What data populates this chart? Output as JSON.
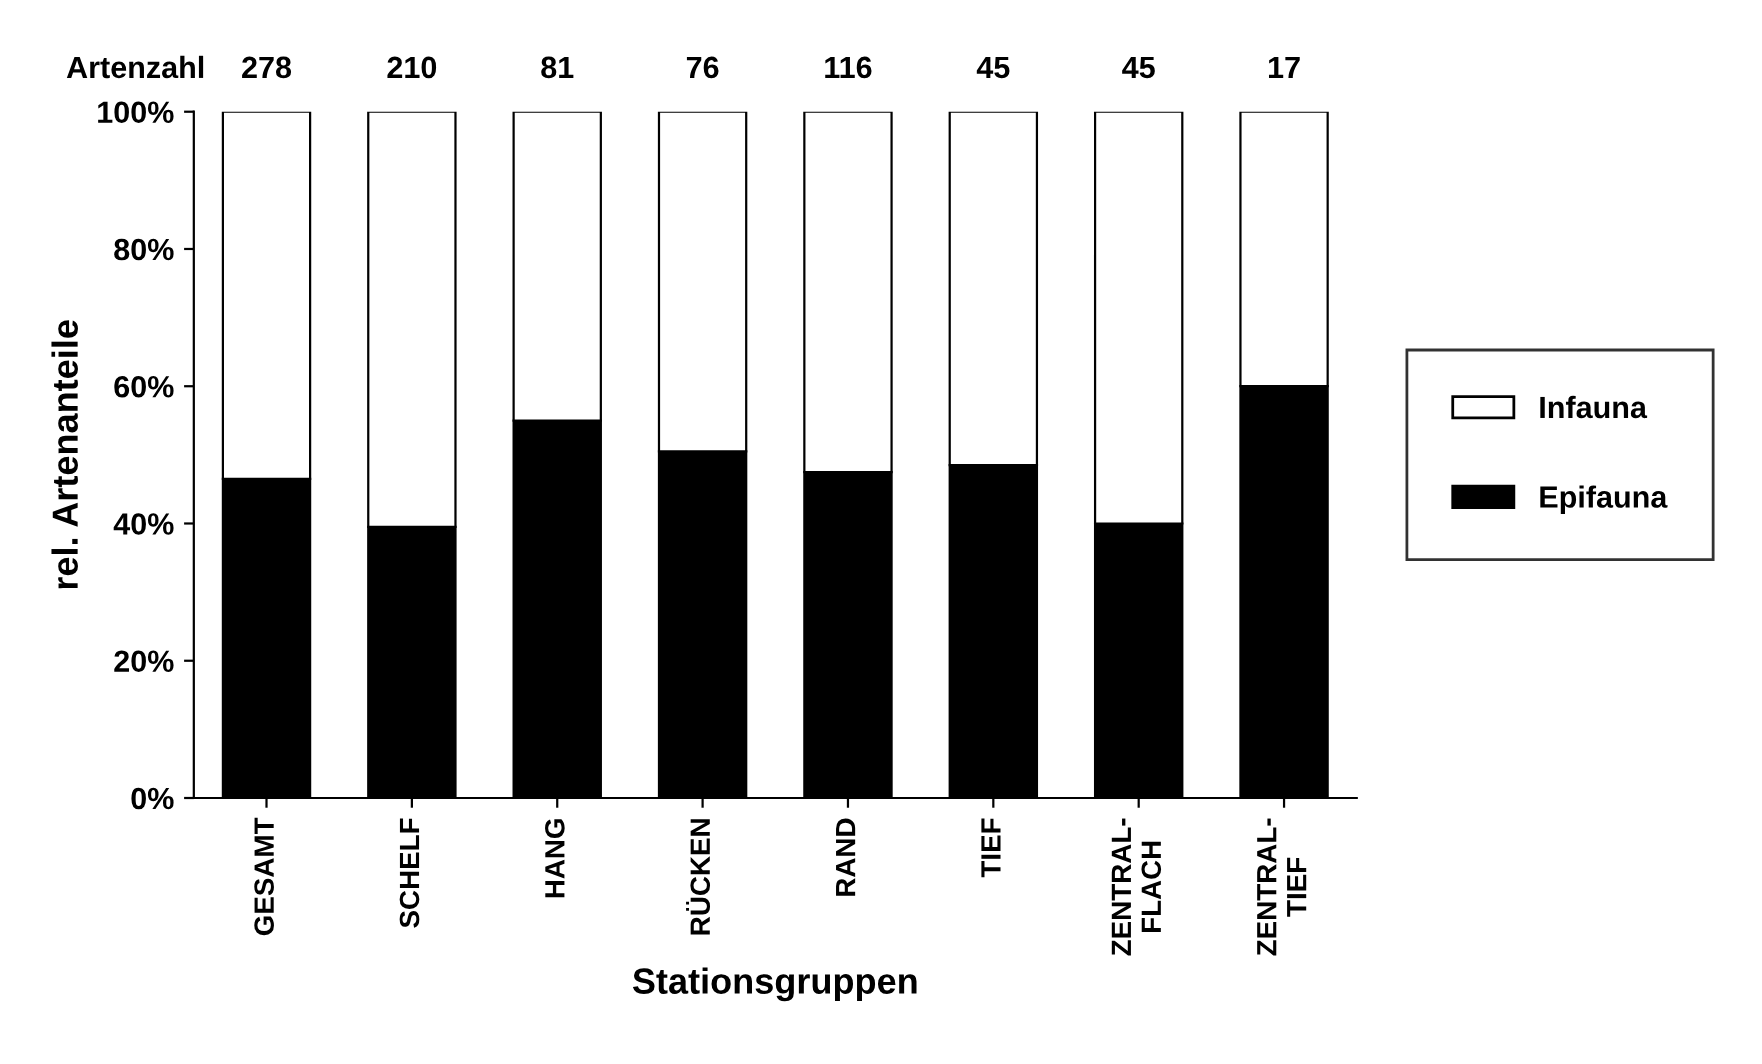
{
  "chart_data": {
    "type": "bar",
    "stacked": true,
    "xlabel": "Stationsgruppen",
    "ylabel": "rel. Artenanteile",
    "categories": [
      "GESAMT",
      "SCHELF",
      "HANG",
      "RÜCKEN",
      "RAND",
      "TIEF",
      "ZENTRAL-\nFLACH",
      "ZENTRAL-\nTIEF"
    ],
    "series": [
      {
        "name": "Epifauna",
        "color": "#000000",
        "values": [
          46.5,
          39.5,
          55,
          50.5,
          47.5,
          48.5,
          40,
          60
        ]
      },
      {
        "name": "Infauna",
        "color": "#ffffff",
        "values": [
          53.5,
          60.5,
          45,
          49.5,
          52.5,
          51.5,
          60,
          40
        ]
      }
    ],
    "ylim": [
      0,
      100
    ],
    "yticks": [
      {
        "value": 0,
        "label": "0%"
      },
      {
        "value": 20,
        "label": "20%"
      },
      {
        "value": 40,
        "label": "40%"
      },
      {
        "value": 60,
        "label": "60%"
      },
      {
        "value": 80,
        "label": "80%"
      },
      {
        "value": 100,
        "label": "100%"
      }
    ],
    "legend": "right",
    "grid": false,
    "annotations": [
      "Artenzahl",
      "278",
      "210",
      "81",
      "76",
      "116",
      "45",
      "45",
      "17"
    ]
  }
}
